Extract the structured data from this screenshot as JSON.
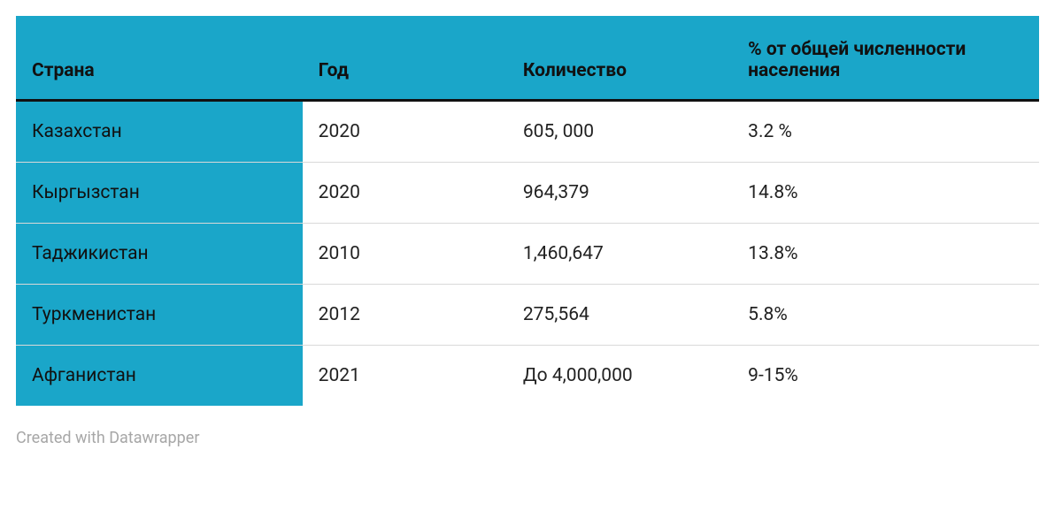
{
  "table": {
    "type": "table",
    "header_bg": "#1aa6c9",
    "first_col_bg": "#1aa6c9",
    "header_border_bottom": "#111111",
    "row_border": "#d9d9d9",
    "text_color": "#222222",
    "header_text_color": "#111111",
    "font_size": 21,
    "header_font_weight": 700,
    "columns": [
      {
        "key": "country",
        "label": "Страна",
        "width": "28%"
      },
      {
        "key": "year",
        "label": "Год",
        "width": "20%"
      },
      {
        "key": "count",
        "label": "Количество",
        "width": "22%"
      },
      {
        "key": "pct",
        "label": "% от общей численности населения",
        "width": "30%"
      }
    ],
    "rows": [
      {
        "country": "Казахстан",
        "year": "2020",
        "count": "605, 000",
        "pct": "3.2 %"
      },
      {
        "country": "Кыргызстан",
        "year": "2020",
        "count": "964,379",
        "pct": "14.8%"
      },
      {
        "country": "Таджикистан",
        "year": "2010",
        "count": "1,460,647",
        "pct": "13.8%"
      },
      {
        "country": "Туркменистан",
        "year": "2012",
        "count": "275,564",
        "pct": "5.8%"
      },
      {
        "country": "Афганистан",
        "year": "2021",
        "count": "До 4,000,000",
        "pct": "9-15%"
      }
    ]
  },
  "footer": {
    "credit": "Created with Datawrapper"
  }
}
